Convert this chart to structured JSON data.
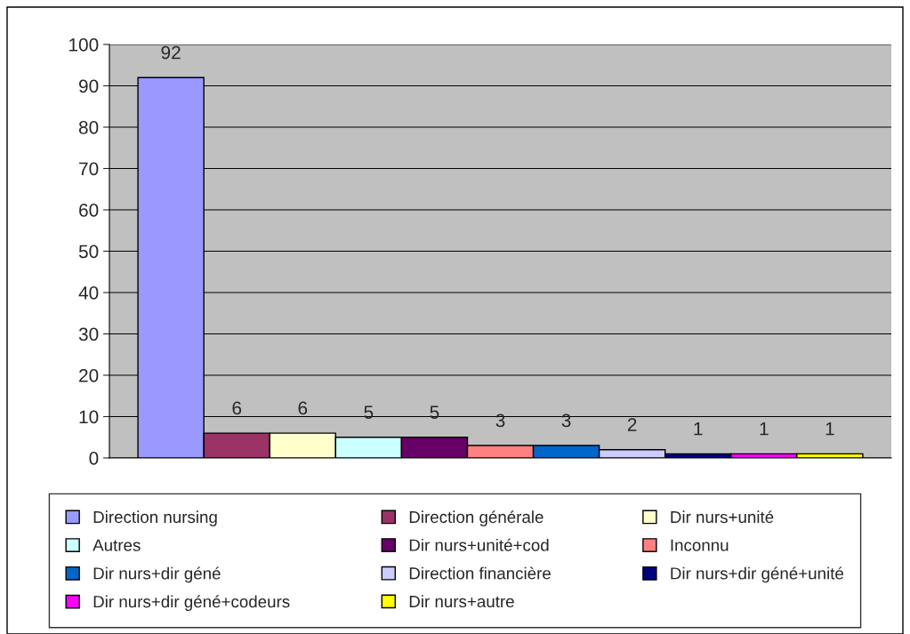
{
  "chart_data": {
    "type": "bar",
    "categories": [
      null
    ],
    "series": [
      {
        "name": "Direction nursing",
        "color": "#9999ff",
        "values": [
          92
        ]
      },
      {
        "name": "Direction générale",
        "color": "#993366",
        "values": [
          6
        ]
      },
      {
        "name": "Dir nurs+unité",
        "color": "#ffffcc",
        "values": [
          6
        ]
      },
      {
        "name": "Autres",
        "color": "#ccffff",
        "values": [
          5
        ]
      },
      {
        "name": "Dir nurs+unité+cod",
        "color": "#660066",
        "values": [
          5
        ]
      },
      {
        "name": "Inconnu",
        "color": "#ff8080",
        "values": [
          3
        ]
      },
      {
        "name": "Dir nurs+dir géné",
        "color": "#0066cc",
        "values": [
          3
        ]
      },
      {
        "name": "Direction financière",
        "color": "#ccccff",
        "values": [
          2
        ]
      },
      {
        "name": "Dir nurs+dir géné+unité",
        "color": "#000080",
        "values": [
          1
        ]
      },
      {
        "name": "Dir nurs+dir géné+codeurs",
        "color": "#ff00ff",
        "values": [
          1
        ]
      },
      {
        "name": "Dir nurs+autre",
        "color": "#ffff00",
        "values": [
          1
        ]
      }
    ],
    "ylim": [
      0,
      100
    ],
    "yticks": [
      0,
      10,
      20,
      30,
      40,
      50,
      60,
      70,
      80,
      90,
      100
    ],
    "grid": "y",
    "legend": "bottom",
    "data_labels": true
  }
}
